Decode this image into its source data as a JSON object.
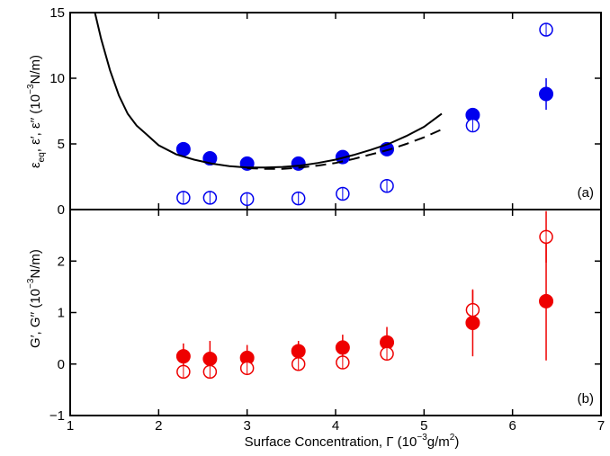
{
  "chart_data": [
    {
      "type": "scatter",
      "panel_label": "(a)",
      "ylabel": {
        "main": "ε",
        "main_sub": "eq",
        "rest": ", ε′, ε′′ (10",
        "sup": "−3",
        "tail": "N/m)"
      },
      "xlabel": {
        "main": "Surface Concentration, Γ (10",
        "sup": "−3",
        "mid": "g/m",
        "sup2": "2",
        "tail": ")"
      },
      "xlim": [
        1,
        7
      ],
      "ylim": [
        0,
        15
      ],
      "xticks": [
        "1",
        "2",
        "3",
        "4",
        "5",
        "6",
        "7"
      ],
      "yticks": [
        "0",
        "5",
        "10",
        "15"
      ],
      "color": "#0000ee",
      "series": [
        {
          "marker": "filled-circle",
          "points": [
            {
              "x": 2.28,
              "y": 4.6
            },
            {
              "x": 2.58,
              "y": 3.9
            },
            {
              "x": 3.0,
              "y": 3.5
            },
            {
              "x": 3.58,
              "y": 3.5
            },
            {
              "x": 4.08,
              "y": 4.0
            },
            {
              "x": 4.58,
              "y": 4.6
            },
            {
              "x": 5.55,
              "y": 7.2,
              "err": 0.5
            },
            {
              "x": 6.38,
              "y": 8.8,
              "err": 1.2
            }
          ]
        },
        {
          "marker": "open-circle",
          "points": [
            {
              "x": 2.28,
              "y": 0.9
            },
            {
              "x": 2.58,
              "y": 0.9
            },
            {
              "x": 3.0,
              "y": 0.8
            },
            {
              "x": 3.58,
              "y": 0.85
            },
            {
              "x": 4.08,
              "y": 1.2
            },
            {
              "x": 4.58,
              "y": 1.8
            },
            {
              "x": 5.55,
              "y": 6.4
            },
            {
              "x": 6.38,
              "y": 13.7
            }
          ]
        },
        {
          "line": "solid",
          "points": [
            {
              "x": 1.28,
              "y": 15.0
            },
            {
              "x": 1.35,
              "y": 13.0
            },
            {
              "x": 1.45,
              "y": 10.6
            },
            {
              "x": 1.55,
              "y": 8.7
            },
            {
              "x": 1.65,
              "y": 7.3
            },
            {
              "x": 1.75,
              "y": 6.4
            },
            {
              "x": 1.85,
              "y": 5.8
            },
            {
              "x": 2.0,
              "y": 4.9
            },
            {
              "x": 2.2,
              "y": 4.2
            },
            {
              "x": 2.4,
              "y": 3.8
            },
            {
              "x": 2.6,
              "y": 3.5
            },
            {
              "x": 2.8,
              "y": 3.3
            },
            {
              "x": 3.0,
              "y": 3.2
            },
            {
              "x": 3.2,
              "y": 3.2
            },
            {
              "x": 3.4,
              "y": 3.25
            },
            {
              "x": 3.6,
              "y": 3.35
            },
            {
              "x": 3.8,
              "y": 3.55
            },
            {
              "x": 4.0,
              "y": 3.8
            },
            {
              "x": 4.2,
              "y": 4.15
            },
            {
              "x": 4.4,
              "y": 4.55
            },
            {
              "x": 4.6,
              "y": 5.0
            },
            {
              "x": 4.8,
              "y": 5.6
            },
            {
              "x": 5.0,
              "y": 6.3
            },
            {
              "x": 5.2,
              "y": 7.3
            }
          ]
        },
        {
          "line": "dashed",
          "points": [
            {
              "x": 3.0,
              "y": 3.15
            },
            {
              "x": 3.2,
              "y": 3.1
            },
            {
              "x": 3.4,
              "y": 3.1
            },
            {
              "x": 3.6,
              "y": 3.2
            },
            {
              "x": 3.8,
              "y": 3.35
            },
            {
              "x": 4.0,
              "y": 3.55
            },
            {
              "x": 4.2,
              "y": 3.85
            },
            {
              "x": 4.4,
              "y": 4.2
            },
            {
              "x": 4.6,
              "y": 4.55
            },
            {
              "x": 4.8,
              "y": 5.0
            },
            {
              "x": 5.0,
              "y": 5.5
            },
            {
              "x": 5.2,
              "y": 6.1
            }
          ]
        }
      ]
    },
    {
      "type": "scatter",
      "panel_label": "(b)",
      "ylabel": {
        "main": "G′, G′′ (10",
        "sup": "−3",
        "tail": "N/m)"
      },
      "xlim": [
        1,
        7
      ],
      "ylim": [
        -1,
        3
      ],
      "xticks": [
        "1",
        "2",
        "3",
        "4",
        "5",
        "6",
        "7"
      ],
      "yticks": [
        "−1",
        "0",
        "1",
        "2"
      ],
      "color": "#ee0000",
      "series": [
        {
          "marker": "filled-circle",
          "points": [
            {
              "x": 2.28,
              "y": 0.15,
              "err": 0.25
            },
            {
              "x": 2.58,
              "y": 0.1,
              "err": 0.35
            },
            {
              "x": 3.0,
              "y": 0.12,
              "err": 0.25
            },
            {
              "x": 3.58,
              "y": 0.25,
              "err": 0.2
            },
            {
              "x": 4.08,
              "y": 0.32,
              "err": 0.25
            },
            {
              "x": 4.58,
              "y": 0.42,
              "err": 0.3
            },
            {
              "x": 5.55,
              "y": 0.8,
              "err": 0.65
            },
            {
              "x": 6.38,
              "y": 1.22,
              "err": 1.15
            }
          ]
        },
        {
          "marker": "open-circle",
          "points": [
            {
              "x": 2.28,
              "y": -0.15,
              "err": 0.1
            },
            {
              "x": 2.58,
              "y": -0.15,
              "err": 0.1
            },
            {
              "x": 3.0,
              "y": -0.08,
              "err": 0.1
            },
            {
              "x": 3.58,
              "y": 0.0,
              "err": 0.1
            },
            {
              "x": 4.08,
              "y": 0.03,
              "err": 0.1
            },
            {
              "x": 4.58,
              "y": 0.2,
              "err": 0.1
            },
            {
              "x": 5.55,
              "y": 1.05,
              "err": 0.38
            },
            {
              "x": 6.38,
              "y": 2.47,
              "err": 0.5
            }
          ]
        }
      ]
    }
  ]
}
